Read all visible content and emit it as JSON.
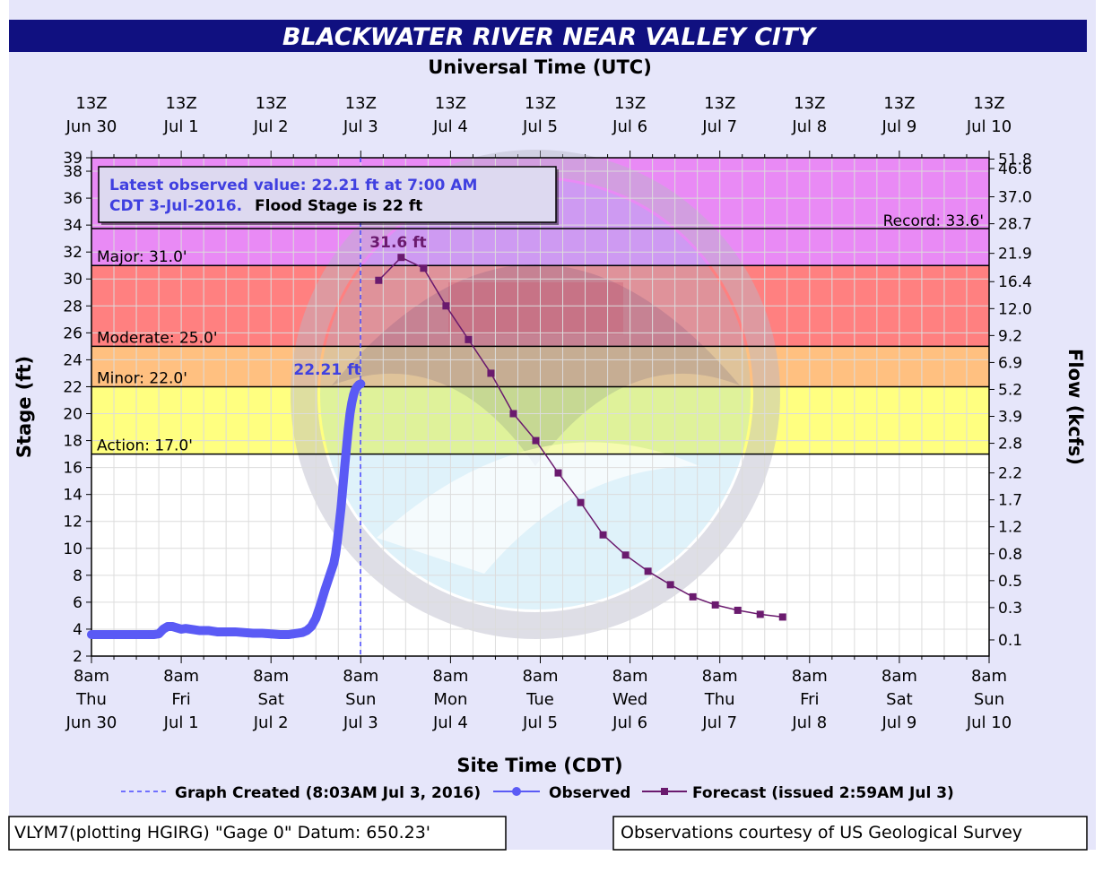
{
  "chart_data": {
    "type": "line",
    "title": "BLACKWATER RIVER NEAR VALLEY CITY",
    "top_axis_title": "Universal Time (UTC)",
    "bottom_axis_title": "Site Time (CDT)",
    "ylabel": "Stage (ft)",
    "y2label": "Flow (kcfs)",
    "ylim": [
      2,
      39
    ],
    "y_ticks": [
      2,
      4,
      6,
      8,
      10,
      12,
      14,
      16,
      18,
      20,
      22,
      24,
      26,
      28,
      30,
      32,
      34,
      36,
      38,
      39
    ],
    "x_range_days": [
      0,
      10
    ],
    "top_ticks": [
      {
        "l1": "13Z",
        "l2": "Jun 30"
      },
      {
        "l1": "13Z",
        "l2": "Jul 1"
      },
      {
        "l1": "13Z",
        "l2": "Jul 2"
      },
      {
        "l1": "13Z",
        "l2": "Jul 3"
      },
      {
        "l1": "13Z",
        "l2": "Jul 4"
      },
      {
        "l1": "13Z",
        "l2": "Jul 5"
      },
      {
        "l1": "13Z",
        "l2": "Jul 6"
      },
      {
        "l1": "13Z",
        "l2": "Jul 7"
      },
      {
        "l1": "13Z",
        "l2": "Jul 8"
      },
      {
        "l1": "13Z",
        "l2": "Jul 9"
      },
      {
        "l1": "13Z",
        "l2": "Jul 10"
      }
    ],
    "bottom_ticks": [
      {
        "l1": "8am",
        "l2": "Thu",
        "l3": "Jun 30"
      },
      {
        "l1": "8am",
        "l2": "Fri",
        "l3": "Jul 1"
      },
      {
        "l1": "8am",
        "l2": "Sat",
        "l3": "Jul 2"
      },
      {
        "l1": "8am",
        "l2": "Sun",
        "l3": "Jul 3"
      },
      {
        "l1": "8am",
        "l2": "Mon",
        "l3": "Jul 4"
      },
      {
        "l1": "8am",
        "l2": "Tue",
        "l3": "Jul 5"
      },
      {
        "l1": "8am",
        "l2": "Wed",
        "l3": "Jul 6"
      },
      {
        "l1": "8am",
        "l2": "Thu",
        "l3": "Jul 7"
      },
      {
        "l1": "8am",
        "l2": "Fri",
        "l3": "Jul 8"
      },
      {
        "l1": "8am",
        "l2": "Sat",
        "l3": "Jul 9"
      },
      {
        "l1": "8am",
        "l2": "Sun",
        "l3": "Jul 10"
      }
    ],
    "flow_ticks": [
      {
        "stage": 3.2,
        "label": "0.1"
      },
      {
        "stage": 5.6,
        "label": "0.3"
      },
      {
        "stage": 7.6,
        "label": "0.5"
      },
      {
        "stage": 9.6,
        "label": "0.8"
      },
      {
        "stage": 11.6,
        "label": "1.2"
      },
      {
        "stage": 13.6,
        "label": "1.7"
      },
      {
        "stage": 15.6,
        "label": "2.2"
      },
      {
        "stage": 17.8,
        "label": "2.8"
      },
      {
        "stage": 19.8,
        "label": "3.9"
      },
      {
        "stage": 21.8,
        "label": "5.2"
      },
      {
        "stage": 23.8,
        "label": "6.9"
      },
      {
        "stage": 25.8,
        "label": "9.2"
      },
      {
        "stage": 27.8,
        "label": "12.0"
      },
      {
        "stage": 29.8,
        "label": "16.4"
      },
      {
        "stage": 31.9,
        "label": "21.9"
      },
      {
        "stage": 34.1,
        "label": "28.7"
      },
      {
        "stage": 36.1,
        "label": "37.0"
      },
      {
        "stage": 38.2,
        "label": "46.6"
      },
      {
        "stage": 38.9,
        "label": "51.8"
      }
    ],
    "flood_categories": [
      {
        "name": "Action",
        "label": "Action: 17.0'",
        "from": 17,
        "to": 22,
        "color": "#ffff80"
      },
      {
        "name": "Minor",
        "label": "Minor: 22.0'",
        "from": 22,
        "to": 25,
        "color": "#ffc080"
      },
      {
        "name": "Moderate",
        "label": "Moderate: 25.0'",
        "from": 25,
        "to": 31,
        "color": "#ff8080"
      },
      {
        "name": "Major",
        "label": "Major: 31.0'",
        "from": 31,
        "to": 39,
        "color": "#e98af5"
      }
    ],
    "record": {
      "label": "Record: 33.6'",
      "value": 33.6
    },
    "graph_created_day": 3.0,
    "series": [
      {
        "name": "Observed",
        "color": "#5a5af5",
        "points": [
          [
            0.0,
            3.6
          ],
          [
            0.1,
            3.6
          ],
          [
            0.2,
            3.6
          ],
          [
            0.3,
            3.6
          ],
          [
            0.4,
            3.6
          ],
          [
            0.5,
            3.6
          ],
          [
            0.6,
            3.6
          ],
          [
            0.7,
            3.6
          ],
          [
            0.75,
            3.65
          ],
          [
            0.8,
            4.0
          ],
          [
            0.85,
            4.2
          ],
          [
            0.9,
            4.2
          ],
          [
            0.95,
            4.1
          ],
          [
            1.0,
            4.0
          ],
          [
            1.05,
            4.05
          ],
          [
            1.1,
            4.0
          ],
          [
            1.2,
            3.9
          ],
          [
            1.3,
            3.9
          ],
          [
            1.4,
            3.8
          ],
          [
            1.5,
            3.8
          ],
          [
            1.6,
            3.8
          ],
          [
            1.7,
            3.75
          ],
          [
            1.8,
            3.7
          ],
          [
            1.9,
            3.7
          ],
          [
            2.0,
            3.65
          ],
          [
            2.1,
            3.6
          ],
          [
            2.2,
            3.6
          ],
          [
            2.3,
            3.7
          ],
          [
            2.35,
            3.75
          ],
          [
            2.4,
            3.9
          ],
          [
            2.45,
            4.2
          ],
          [
            2.5,
            4.8
          ],
          [
            2.55,
            5.8
          ],
          [
            2.6,
            6.9
          ],
          [
            2.65,
            7.9
          ],
          [
            2.7,
            8.9
          ],
          [
            2.72,
            9.6
          ],
          [
            2.74,
            10.6
          ],
          [
            2.76,
            11.8
          ],
          [
            2.78,
            13.0
          ],
          [
            2.8,
            14.5
          ],
          [
            2.82,
            16.0
          ],
          [
            2.84,
            17.4
          ],
          [
            2.86,
            18.8
          ],
          [
            2.88,
            20.0
          ],
          [
            2.9,
            20.8
          ],
          [
            2.92,
            21.4
          ],
          [
            2.94,
            21.8
          ],
          [
            2.96,
            22.0
          ],
          [
            2.98,
            22.15
          ],
          [
            3.0,
            22.21
          ]
        ]
      },
      {
        "name": "Forecast",
        "color": "#6a1a6e",
        "points": [
          [
            3.2,
            29.9
          ],
          [
            3.45,
            31.6
          ],
          [
            3.7,
            30.8
          ],
          [
            3.95,
            28.0
          ],
          [
            4.2,
            25.5
          ],
          [
            4.45,
            23.0
          ],
          [
            4.7,
            20.0
          ],
          [
            4.95,
            18.0
          ],
          [
            5.2,
            15.6
          ],
          [
            5.45,
            13.4
          ],
          [
            5.7,
            11.0
          ],
          [
            5.95,
            9.5
          ],
          [
            6.2,
            8.3
          ],
          [
            6.45,
            7.3
          ],
          [
            6.7,
            6.4
          ],
          [
            6.95,
            5.8
          ],
          [
            7.2,
            5.4
          ],
          [
            7.45,
            5.1
          ],
          [
            7.7,
            4.9
          ]
        ]
      }
    ],
    "annotations": {
      "crest_label": "31.6 ft",
      "latest_label": "22.21 ft",
      "latest_box_line1": "Latest observed value: 22.21 ft at 7:00 AM",
      "latest_box_line2": "CDT 3-Jul-2016.",
      "latest_box_line2b": "Flood Stage is 22 ft"
    },
    "legend": {
      "graph_created": "Graph Created (8:03AM Jul 3, 2016)",
      "observed": "Observed",
      "forecast": "Forecast (issued 2:59AM Jul 3)"
    },
    "grid": true
  },
  "footer": {
    "left": "VLYM7(plotting HGIRG) \"Gage 0\" Datum: 650.23'",
    "right": "Observations courtesy of US Geological Survey"
  },
  "colors": {
    "title_bar": "#101080",
    "title_text": "#ffffff",
    "page_background": "#e6e6fa",
    "plot_background": "#ffffff",
    "observed": "#5a5af5",
    "forecast": "#6a1a6e",
    "annotation_blue": "#4040e0"
  }
}
